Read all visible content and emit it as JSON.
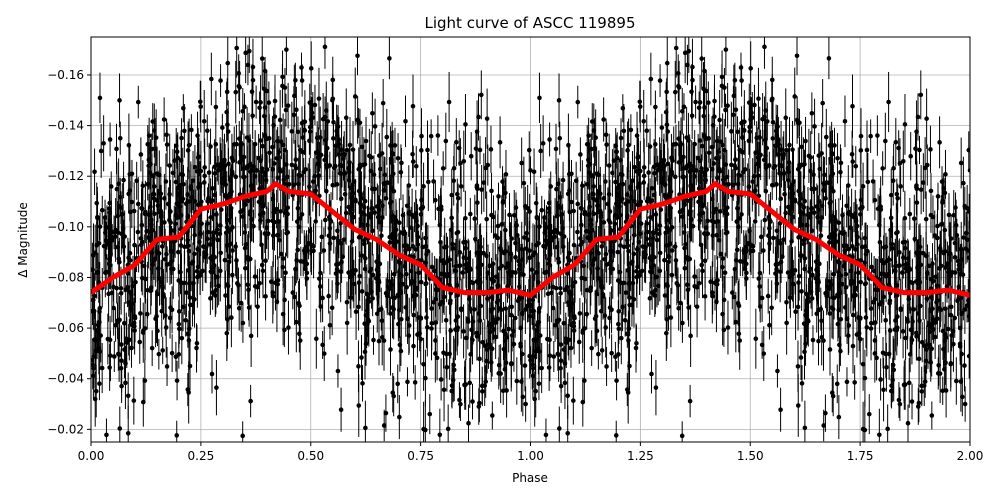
{
  "chart_data": {
    "type": "scatter",
    "title": "Light curve of ASCC 119895",
    "xlabel": "Phase",
    "ylabel": "Δ Magnitude",
    "xlim": [
      0,
      2
    ],
    "ylim": [
      -0.015,
      -0.175
    ],
    "y_inverted": true,
    "grid": true,
    "xticks": [
      "0.00",
      "0.25",
      "0.50",
      "0.75",
      "1.00",
      "1.25",
      "1.50",
      "1.75",
      "2.00"
    ],
    "xtick_values": [
      0,
      0.25,
      0.5,
      0.75,
      1.0,
      1.25,
      1.5,
      1.75,
      2.0
    ],
    "yticks": [
      "−0.16",
      "−0.14",
      "−0.12",
      "−0.10",
      "−0.08",
      "−0.06",
      "−0.04",
      "−0.02"
    ],
    "ytick_values": [
      -0.16,
      -0.14,
      -0.12,
      -0.1,
      -0.08,
      -0.06,
      -0.04,
      -0.02
    ],
    "scatter": {
      "color": "#000000",
      "scatter_std": 0.027,
      "typical_yerr": 0.009,
      "approx_points": 3000
    },
    "binned": {
      "color": "#ff0000",
      "x": [
        0,
        0.05,
        0.1,
        0.15,
        0.2,
        0.25,
        0.3,
        0.35,
        0.4,
        0.42,
        0.45,
        0.5,
        0.55,
        0.6,
        0.65,
        0.7,
        0.75,
        0.8,
        0.85,
        0.9,
        0.95,
        1.0,
        1.05,
        1.1,
        1.15,
        1.2,
        1.25,
        1.3,
        1.35,
        1.4,
        1.42,
        1.45,
        1.5,
        1.55,
        1.6,
        1.65,
        1.7,
        1.75,
        1.8,
        1.85,
        1.9,
        1.95,
        2.0
      ],
      "y": [
        -0.074,
        -0.08,
        -0.085,
        -0.095,
        -0.096,
        -0.107,
        -0.109,
        -0.112,
        -0.114,
        -0.117,
        -0.114,
        -0.113,
        -0.106,
        -0.099,
        -0.095,
        -0.089,
        -0.085,
        -0.076,
        -0.074,
        -0.074,
        -0.075,
        -0.073,
        -0.08,
        -0.085,
        -0.095,
        -0.096,
        -0.107,
        -0.109,
        -0.112,
        -0.114,
        -0.117,
        -0.114,
        -0.113,
        -0.106,
        -0.099,
        -0.095,
        -0.089,
        -0.085,
        -0.076,
        -0.074,
        -0.074,
        -0.075,
        -0.073
      ]
    }
  }
}
